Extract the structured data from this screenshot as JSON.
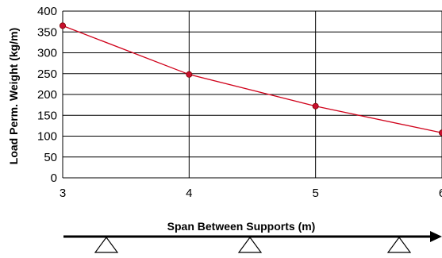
{
  "chart_data": {
    "type": "line",
    "xlabel": "Span Between Supports (m)",
    "ylabel": "Load Perm. Weight (kg/m)",
    "xlim": [
      3,
      6
    ],
    "ylim": [
      0,
      400
    ],
    "x_ticks": [
      "3",
      "4",
      "5",
      "6"
    ],
    "y_ticks": [
      "0",
      "50",
      "100",
      "150",
      "200",
      "250",
      "300",
      "350",
      "400"
    ],
    "grid": true,
    "series": [
      {
        "x": [
          3,
          4,
          5,
          6
        ],
        "values": [
          365,
          248,
          172,
          108
        ]
      }
    ]
  },
  "colors": {
    "line": "#d0021b",
    "marker": "#c8102e",
    "grid": "#000000",
    "text": "#000000"
  },
  "diagram": {
    "beam": "arrow-beam",
    "supports": [
      "support-triangle-icon",
      "support-triangle-icon",
      "support-triangle-icon"
    ]
  }
}
